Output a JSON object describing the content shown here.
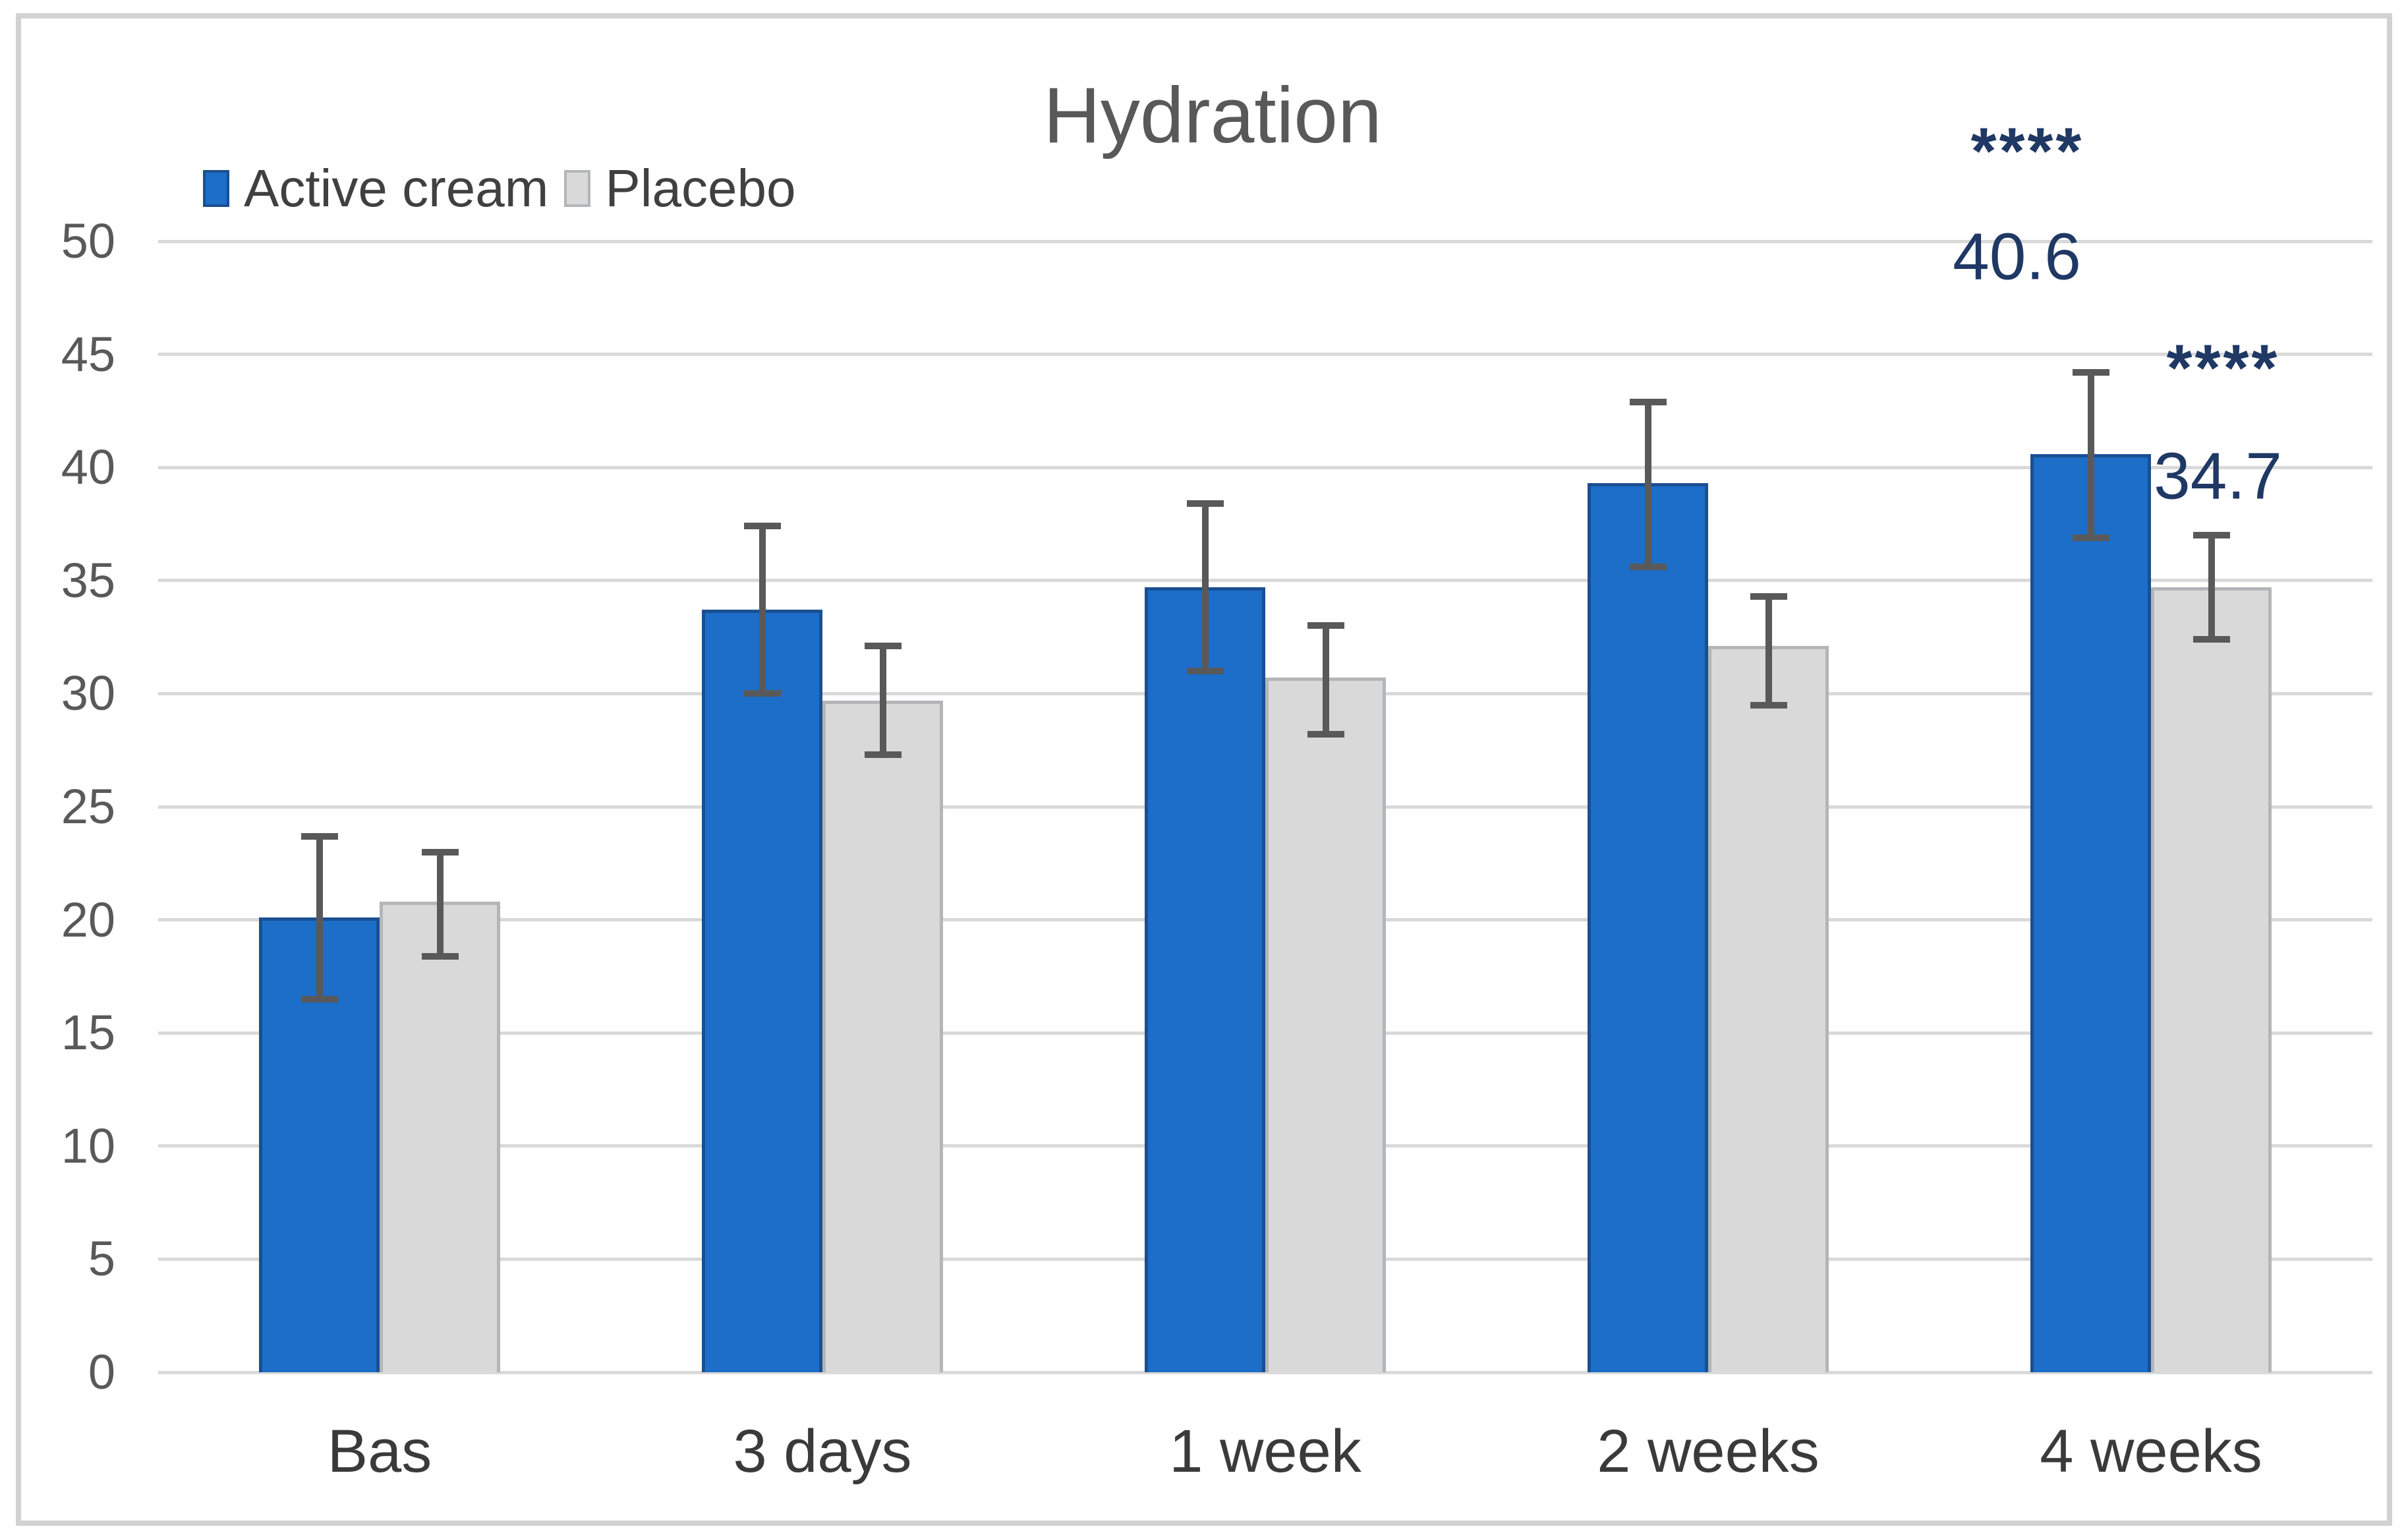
{
  "chart_data": {
    "type": "bar",
    "title": "Hydration",
    "categories": [
      "Bas",
      "3 days",
      "1 week",
      "2 weeks",
      "4 weeks"
    ],
    "series": [
      {
        "name": "Active cream",
        "fill": "#1c6ec9",
        "border": "#1a4f91",
        "values": [
          20.1,
          33.7,
          34.7,
          39.3,
          40.6
        ],
        "error_low": [
          16.5,
          30.0,
          31.0,
          35.6,
          36.9
        ],
        "error_high": [
          23.7,
          37.4,
          38.4,
          42.9,
          44.2
        ]
      },
      {
        "name": "Placebo",
        "fill": "#d9d9d9",
        "border": "#b3b6b8",
        "values": [
          20.8,
          29.7,
          30.7,
          32.1,
          34.7
        ],
        "error_low": [
          18.4,
          27.3,
          28.2,
          29.5,
          32.4
        ],
        "error_high": [
          23.0,
          32.1,
          33.0,
          34.3,
          37.0
        ]
      }
    ],
    "ylim": [
      0,
      50
    ],
    "yticks": [
      "0",
      "5",
      "10",
      "15",
      "20",
      "25",
      "30",
      "35",
      "40",
      "45",
      "50"
    ],
    "grid": true,
    "legend_position": "top-left",
    "annotations": [
      {
        "text": "****",
        "series": 0,
        "category": 4,
        "dx": -96,
        "y_value": 54.4,
        "kind": "stars"
      },
      {
        "text": "40.6",
        "series": 0,
        "category": 4,
        "dx": -112,
        "y_value": 49.3,
        "kind": "value"
      },
      {
        "text": "****",
        "series": 1,
        "category": 4,
        "dx": 18,
        "y_value": 44.8,
        "kind": "stars"
      },
      {
        "text": "34.7",
        "series": 1,
        "category": 4,
        "dx": 10,
        "y_value": 39.6,
        "kind": "value"
      }
    ],
    "colors": {
      "gridline": "#d9d9d9",
      "axis_text": "#595959",
      "category_text": "#3a3a3a",
      "title_text": "#595959",
      "error_bar": "#595959",
      "annotation": "#1f3864",
      "frame_border": "#d2d2d2",
      "background": "#ffffff"
    }
  }
}
